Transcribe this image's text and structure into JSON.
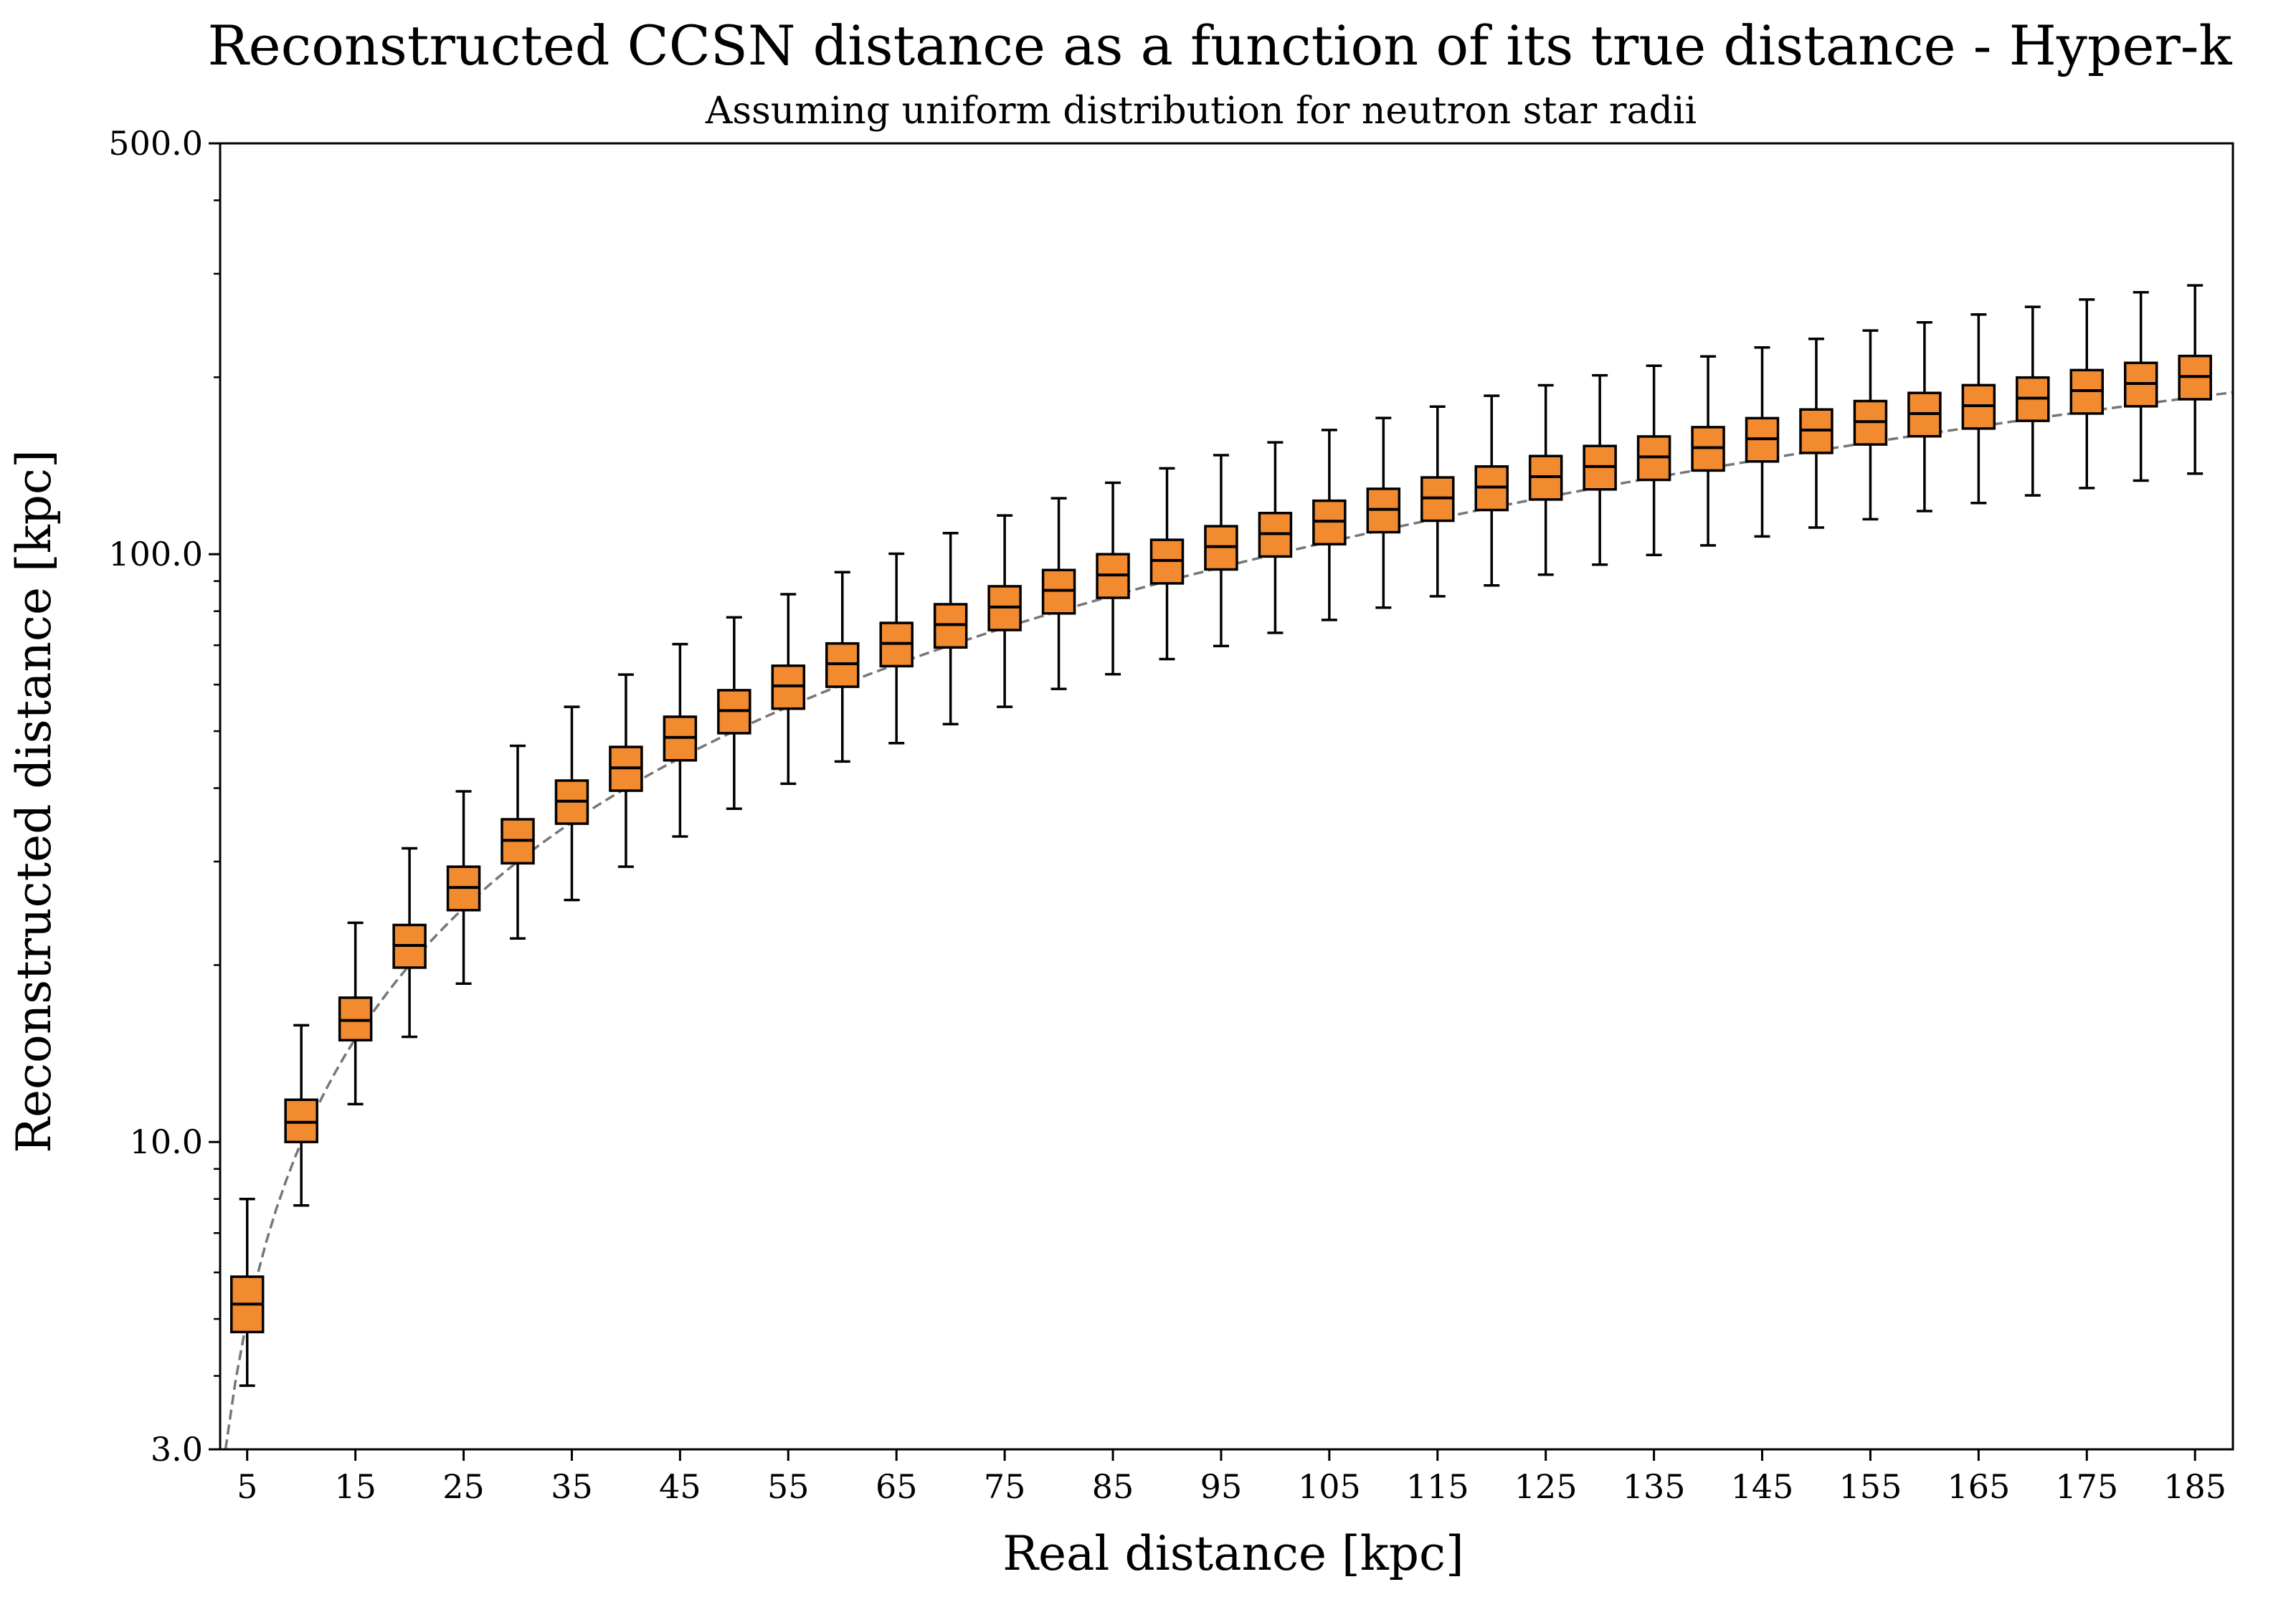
{
  "chart_data": {
    "type": "box",
    "title": "Reconstructed CCSN distance as a function of its true distance - Hyper-k",
    "subtitle": "Assuming uniform distribution for neutron star radii",
    "xlabel": "Real distance [kpc]",
    "ylabel": "Reconstructed distance [kpc]",
    "yscale": "log",
    "ylim": [
      3.0,
      500.0
    ],
    "xlim": [
      2.5,
      188.5
    ],
    "ytick_labels": [
      "3.0",
      "10.0",
      "100.0",
      "500.0"
    ],
    "ytick_values": [
      3.0,
      10.0,
      100.0,
      500.0
    ],
    "xtick_labels": [
      "5",
      "15",
      "25",
      "35",
      "45",
      "55",
      "65",
      "75",
      "85",
      "95",
      "105",
      "115",
      "125",
      "135",
      "145",
      "155",
      "165",
      "175",
      "185"
    ],
    "xtick_values": [
      5,
      15,
      25,
      35,
      45,
      55,
      65,
      75,
      85,
      95,
      105,
      115,
      125,
      135,
      145,
      155,
      165,
      175,
      185
    ],
    "box_color": "#f28a30",
    "box_edge_color": "#000000",
    "reference_line": {
      "style": "dashed",
      "color": "#777777",
      "description": "y = x"
    },
    "grid": false,
    "legend": "none",
    "boxes": [
      {
        "x": 5,
        "whislo": 3.85,
        "q1": 4.75,
        "median": 5.3,
        "q3": 5.9,
        "whishi": 8.0
      },
      {
        "x": 10,
        "whislo": 7.8,
        "q1": 10.0,
        "median": 10.8,
        "q3": 11.8,
        "whishi": 15.8
      },
      {
        "x": 15,
        "whislo": 11.6,
        "q1": 14.9,
        "median": 16.1,
        "q3": 17.6,
        "whishi": 23.6
      },
      {
        "x": 20,
        "whislo": 15.1,
        "q1": 19.8,
        "median": 21.6,
        "q3": 23.4,
        "whishi": 31.6
      },
      {
        "x": 25,
        "whislo": 18.6,
        "q1": 24.8,
        "median": 27.1,
        "q3": 29.4,
        "whishi": 39.5
      },
      {
        "x": 30,
        "whislo": 22.2,
        "q1": 29.8,
        "median": 32.6,
        "q3": 35.4,
        "whishi": 47.2
      },
      {
        "x": 35,
        "whislo": 25.8,
        "q1": 34.8,
        "median": 38.0,
        "q3": 41.2,
        "whishi": 55.0
      },
      {
        "x": 40,
        "whislo": 29.4,
        "q1": 39.6,
        "median": 43.3,
        "q3": 47.0,
        "whishi": 62.4
      },
      {
        "x": 45,
        "whislo": 33.1,
        "q1": 44.6,
        "median": 48.8,
        "q3": 52.9,
        "whishi": 70.3
      },
      {
        "x": 50,
        "whislo": 36.9,
        "q1": 49.6,
        "median": 54.2,
        "q3": 58.7,
        "whishi": 78.1
      },
      {
        "x": 55,
        "whislo": 40.7,
        "q1": 54.6,
        "median": 59.7,
        "q3": 64.6,
        "whishi": 85.5
      },
      {
        "x": 60,
        "whislo": 44.4,
        "q1": 59.5,
        "median": 65.1,
        "q3": 70.5,
        "whishi": 93.2
      },
      {
        "x": 65,
        "whislo": 47.7,
        "q1": 64.5,
        "median": 70.5,
        "q3": 76.4,
        "whishi": 100.2
      },
      {
        "x": 70,
        "whislo": 51.4,
        "q1": 69.4,
        "median": 75.9,
        "q3": 82.2,
        "whishi": 108.6
      },
      {
        "x": 75,
        "whislo": 55.0,
        "q1": 74.3,
        "median": 81.3,
        "q3": 88.2,
        "whishi": 116.4
      },
      {
        "x": 80,
        "whislo": 59.0,
        "q1": 79.3,
        "median": 86.8,
        "q3": 94.0,
        "whishi": 124.5
      },
      {
        "x": 85,
        "whislo": 62.5,
        "q1": 84.3,
        "median": 92.2,
        "q3": 100.0,
        "whishi": 132.3
      },
      {
        "x": 90,
        "whislo": 66.3,
        "q1": 89.2,
        "median": 97.6,
        "q3": 105.8,
        "whishi": 140.0
      },
      {
        "x": 95,
        "whislo": 69.8,
        "q1": 94.2,
        "median": 103.0,
        "q3": 111.6,
        "whishi": 147.4
      },
      {
        "x": 100,
        "whislo": 73.5,
        "q1": 99.1,
        "median": 108.4,
        "q3": 117.5,
        "whishi": 155.0
      },
      {
        "x": 105,
        "whislo": 77.3,
        "q1": 104.0,
        "median": 113.8,
        "q3": 123.3,
        "whishi": 162.7
      },
      {
        "x": 110,
        "whislo": 81.1,
        "q1": 109.0,
        "median": 119.2,
        "q3": 129.2,
        "whishi": 170.5
      },
      {
        "x": 115,
        "whislo": 84.8,
        "q1": 114.0,
        "median": 124.7,
        "q3": 135.1,
        "whishi": 178.3
      },
      {
        "x": 120,
        "whislo": 88.5,
        "q1": 118.9,
        "median": 130.1,
        "q3": 141.0,
        "whishi": 186.0
      },
      {
        "x": 125,
        "whislo": 92.3,
        "q1": 123.9,
        "median": 135.5,
        "q3": 146.9,
        "whishi": 193.8
      },
      {
        "x": 130,
        "whislo": 96.0,
        "q1": 128.9,
        "median": 141.0,
        "q3": 152.8,
        "whishi": 201.5
      },
      {
        "x": 135,
        "whislo": 99.7,
        "q1": 133.8,
        "median": 146.4,
        "q3": 158.6,
        "whishi": 209.2
      },
      {
        "x": 140,
        "whislo": 103.5,
        "q1": 138.8,
        "median": 151.8,
        "q3": 164.5,
        "whishi": 217.0
      },
      {
        "x": 145,
        "whislo": 107.2,
        "q1": 143.8,
        "median": 157.2,
        "q3": 170.4,
        "whishi": 224.8
      },
      {
        "x": 150,
        "whislo": 111.0,
        "q1": 148.7,
        "median": 162.6,
        "q3": 176.3,
        "whishi": 232.5
      },
      {
        "x": 155,
        "whislo": 114.7,
        "q1": 153.7,
        "median": 168.1,
        "q3": 182.2,
        "whishi": 240.2
      },
      {
        "x": 160,
        "whislo": 118.4,
        "q1": 158.7,
        "median": 173.5,
        "q3": 188.1,
        "whishi": 248.0
      },
      {
        "x": 165,
        "whislo": 122.2,
        "q1": 163.6,
        "median": 178.9,
        "q3": 193.9,
        "whishi": 255.8
      },
      {
        "x": 170,
        "whislo": 125.9,
        "q1": 168.6,
        "median": 184.3,
        "q3": 199.8,
        "whishi": 263.5
      },
      {
        "x": 175,
        "whislo": 129.6,
        "q1": 173.5,
        "median": 189.8,
        "q3": 205.7,
        "whishi": 271.2
      },
      {
        "x": 180,
        "whislo": 133.4,
        "q1": 178.5,
        "median": 195.2,
        "q3": 211.6,
        "whishi": 279.0
      },
      {
        "x": 185,
        "whislo": 137.1,
        "q1": 183.5,
        "median": 200.6,
        "q3": 217.4,
        "whishi": 286.7
      }
    ]
  }
}
